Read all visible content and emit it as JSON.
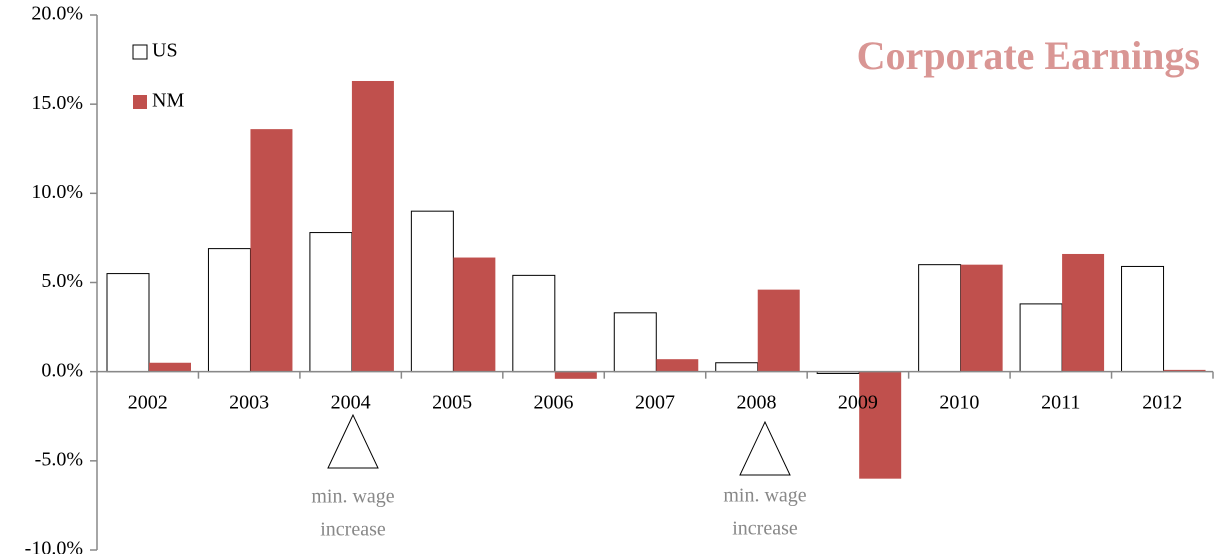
{
  "chart_data": {
    "type": "bar",
    "title": "Corporate Earnings",
    "title_color": "#d99694",
    "categories": [
      "2002",
      "2003",
      "2004",
      "2005",
      "2006",
      "2007",
      "2008",
      "2009",
      "2010",
      "2011",
      "2012"
    ],
    "series": [
      {
        "name": "US",
        "color": "#ffffff",
        "values": [
          5.5,
          6.9,
          7.8,
          9.0,
          5.4,
          3.3,
          0.5,
          -0.1,
          6.0,
          3.8,
          5.9
        ]
      },
      {
        "name": "NM",
        "color": "#c0504d",
        "values": [
          0.5,
          13.6,
          16.3,
          6.4,
          -0.4,
          0.7,
          4.6,
          -6.0,
          6.0,
          6.6,
          0.1
        ]
      }
    ],
    "ylim": [
      -10,
      20
    ],
    "yticks": [
      {
        "value": -10,
        "label": "-10.0%"
      },
      {
        "value": -5,
        "label": "-5.0%"
      },
      {
        "value": 0,
        "label": "0.0%"
      },
      {
        "value": 5,
        "label": "5.0%"
      },
      {
        "value": 10,
        "label": "10.0%"
      },
      {
        "value": 15,
        "label": "15.0%"
      },
      {
        "value": 20,
        "label": "20.0%"
      }
    ],
    "grid": false,
    "legend": "upper left",
    "annotations": [
      [
        "min. wage",
        "increase"
      ],
      [
        "min. wage",
        "increase"
      ]
    ]
  }
}
